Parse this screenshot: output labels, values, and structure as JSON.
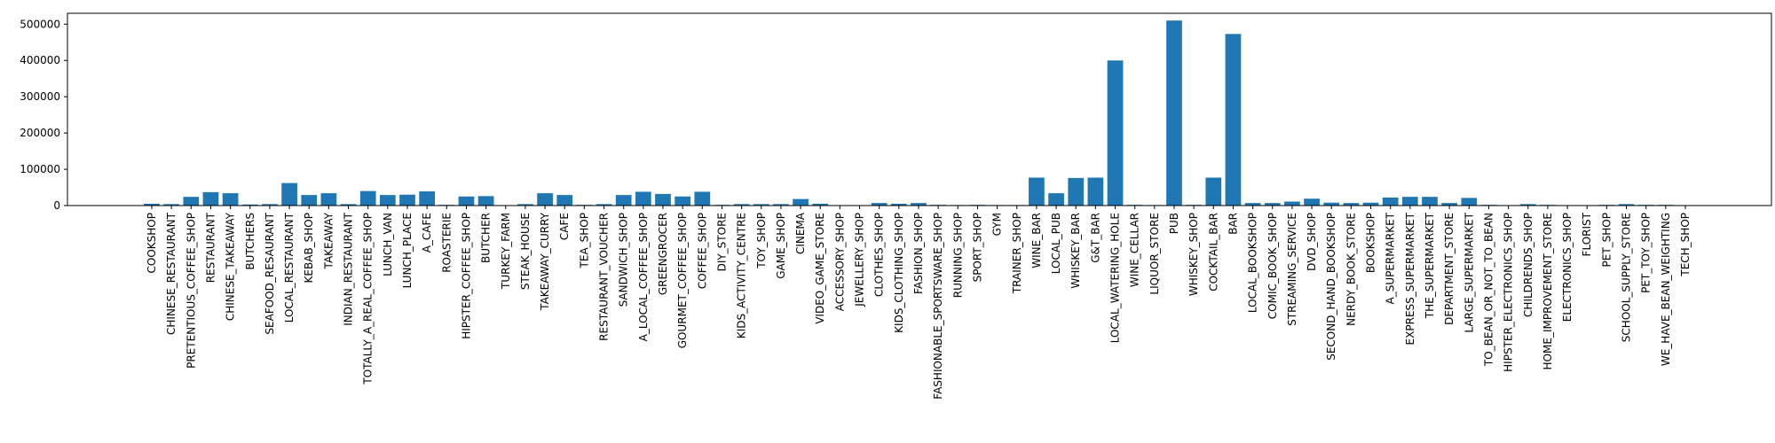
{
  "chart_data": {
    "type": "bar",
    "title": "",
    "xlabel": "",
    "ylabel": "",
    "ylim": [
      0,
      530000
    ],
    "yticks": [
      0,
      100000,
      200000,
      300000,
      400000,
      500000
    ],
    "grid": false,
    "bar_color": "#1f77b4",
    "categories": [
      "COOKSHOP",
      "CHINESE_RESTAURANT",
      "PRETENTIOUS_COFFEE_SHOP",
      "RESTAURANT",
      "CHINESE_TAKEAWAY",
      "BUTCHERS",
      "SEAFOOD_RESAURANT",
      "LOCAL_RESTAURANT",
      "KEBAB_SHOP",
      "TAKEAWAY",
      "INDIAN_RESTAURANT",
      "TOTALLY_A_REAL_COFFEE_SHOP",
      "LUNCH_VAN",
      "LUNCH_PLACE",
      "A_CAFE",
      "ROASTERIE",
      "HIPSTER_COFFEE_SHOP",
      "BUTCHER",
      "TURKEY_FARM",
      "STEAK_HOUSE",
      "TAKEAWAY_CURRY",
      "CAFE",
      "TEA_SHOP",
      "RESTAURANT_VOUCHER",
      "SANDWICH_SHOP",
      "A_LOCAL_COFFEE_SHOP",
      "GREENGROCER",
      "GOURMET_COFFEE_SHOP",
      "COFFEE_SHOP",
      "DIY_STORE",
      "KIDS_ACTIVITY_CENTRE",
      "TOY_SHOP",
      "GAME_SHOP",
      "CINEMA",
      "VIDEO_GAME_STORE",
      "ACCESSORY_SHOP",
      "JEWELLERY_SHOP",
      "CLOTHES_SHOP",
      "KIDS_CLOTHING_SHOP",
      "FASHION_SHOP",
      "FASHIONABLE_SPORTSWARE_SHOP",
      "RUNNING_SHOP",
      "SPORT_SHOP",
      "GYM",
      "TRAINER_SHOP",
      "WINE_BAR",
      "LOCAL_PUB",
      "WHISKEY_BAR",
      "G&T_BAR",
      "LOCAL_WATERING_HOLE",
      "WINE_CELLAR",
      "LIQUOR_STORE",
      "PUB",
      "WHISKEY_SHOP",
      "COCKTAIL_BAR",
      "BAR",
      "LOCAL_BOOKSHOP",
      "COMIC_BOOK_SHOP",
      "STREAMING_SERVICE",
      "DVD_SHOP",
      "SECOND_HAND_BOOKSHOP",
      "NERDY_BOOK_STORE",
      "BOOKSHOP",
      "A_SUPERMARKET",
      "EXPRESS_SUPERMARKET",
      "THE_SUPERMARKET",
      "DEPARTMENT_STORE",
      "LARGE_SUPERMARKET",
      "TO_BEAN_OR_NOT_TO_BEAN",
      "HIPSTER_ELECTRONICS_SHOP",
      "CHILDRENDS_SHOP",
      "HOME_IMPROVEMENT_STORE",
      "ELECTRONICS_SHOP",
      "FLORIST",
      "PET_SHOP",
      "SCHOOL_SUPPLY_STORE",
      "PET_TOY_SHOP",
      "WE_HAVE_BEAN_WEIGHTING",
      "TECH_SHOP"
    ],
    "values": [
      5000,
      4000,
      24000,
      37000,
      34000,
      3000,
      4000,
      62000,
      29000,
      34000,
      4000,
      40000,
      29000,
      30000,
      39000,
      2000,
      25000,
      26000,
      500,
      4000,
      34000,
      29000,
      2000,
      4000,
      29000,
      38000,
      32000,
      25000,
      38000,
      2000,
      4000,
      4000,
      4000,
      18000,
      5000,
      1000,
      1000,
      7000,
      5000,
      7000,
      2000,
      1500,
      2000,
      1500,
      1500,
      77000,
      34000,
      76000,
      77000,
      400000,
      2000,
      1500,
      510000,
      2000,
      77000,
      473000,
      7000,
      7000,
      11000,
      19000,
      8000,
      7000,
      8000,
      22000,
      24000,
      24000,
      7000,
      21000,
      2000,
      500,
      4000,
      2000,
      500,
      500,
      2000,
      4000,
      2000,
      2000,
      500
    ]
  }
}
